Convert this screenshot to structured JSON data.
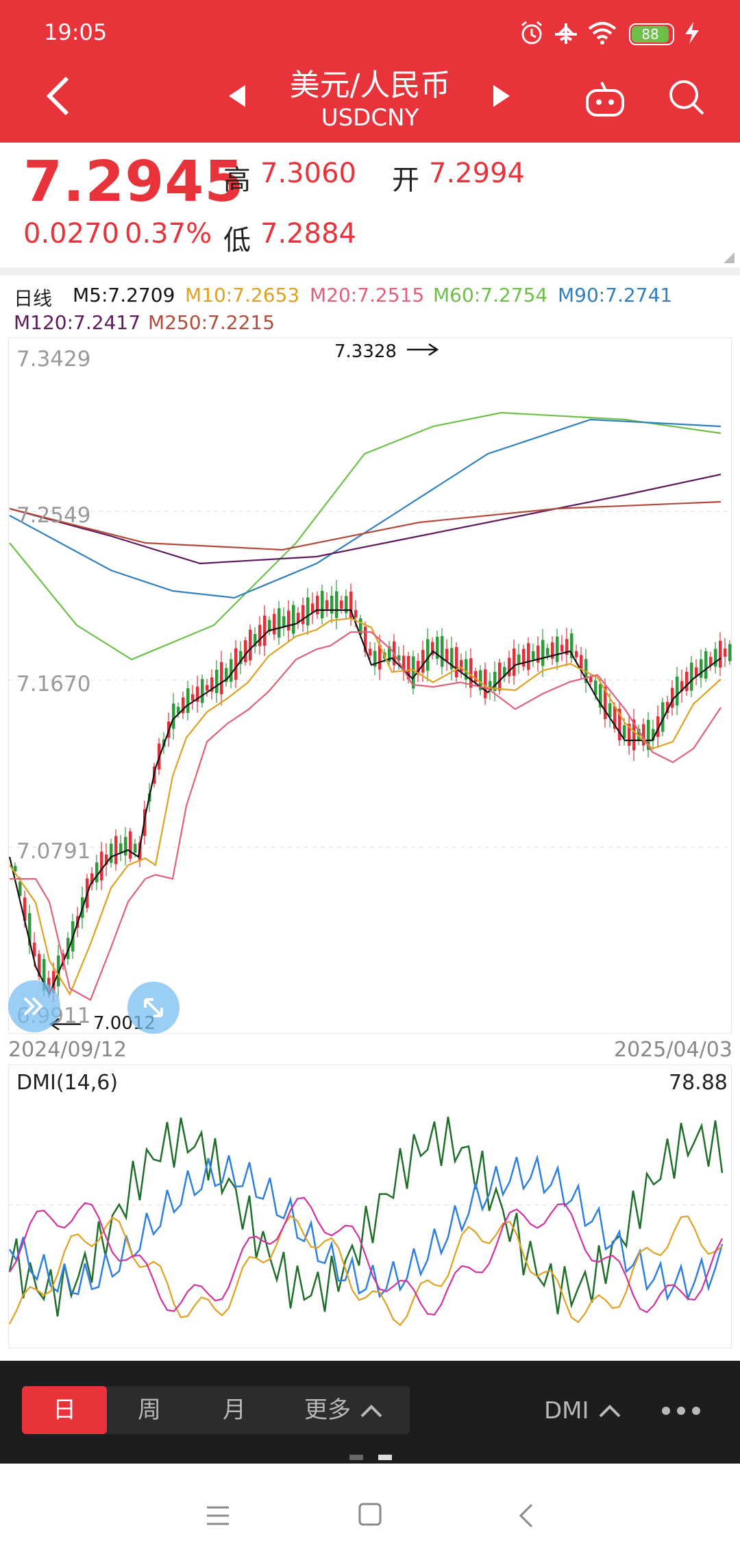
{
  "status_bar": {
    "time": "19:05",
    "battery": "88"
  },
  "header": {
    "title": "美元/人民币",
    "symbol": "USDCNY"
  },
  "quote": {
    "price": "7.2945",
    "change": "0.0270",
    "change_pct": "0.37%",
    "high_label": "高",
    "high": "7.3060",
    "open_label": "开",
    "open": "7.2994",
    "low_label": "低",
    "low": "7.2884"
  },
  "ma_legend": {
    "period_label": "日线",
    "items": [
      {
        "text": "M5:7.2709",
        "color": "#111111"
      },
      {
        "text": "M10:7.2653",
        "color": "#e0a020"
      },
      {
        "text": "M20:7.2515",
        "color": "#e0607a"
      },
      {
        "text": "M60:7.2754",
        "color": "#6cc04a"
      },
      {
        "text": "M90:7.2741",
        "color": "#2f7fbf"
      },
      {
        "text": "M120:7.2417",
        "color": "#5c1a5c"
      },
      {
        "text": "M250:7.2215",
        "color": "#b04a3a"
      }
    ]
  },
  "kline": {
    "y_ticks": [
      "7.3429",
      "7.2549",
      "7.1670",
      "7.0791",
      "6.9911"
    ],
    "max_marker": "7.3328",
    "min_marker": "7.0012",
    "start_date": "2024/09/12",
    "end_date": "2025/04/03"
  },
  "dmi": {
    "label": "DMI(14,6)",
    "value": "78.88"
  },
  "bottom": {
    "tabs": [
      "日",
      "周",
      "月",
      "更多"
    ],
    "active_tab": "日",
    "indicator": "DMI"
  },
  "colors": {
    "accent": "#e8333a",
    "up": "#e0303a",
    "down": "#2e9a3a"
  }
}
